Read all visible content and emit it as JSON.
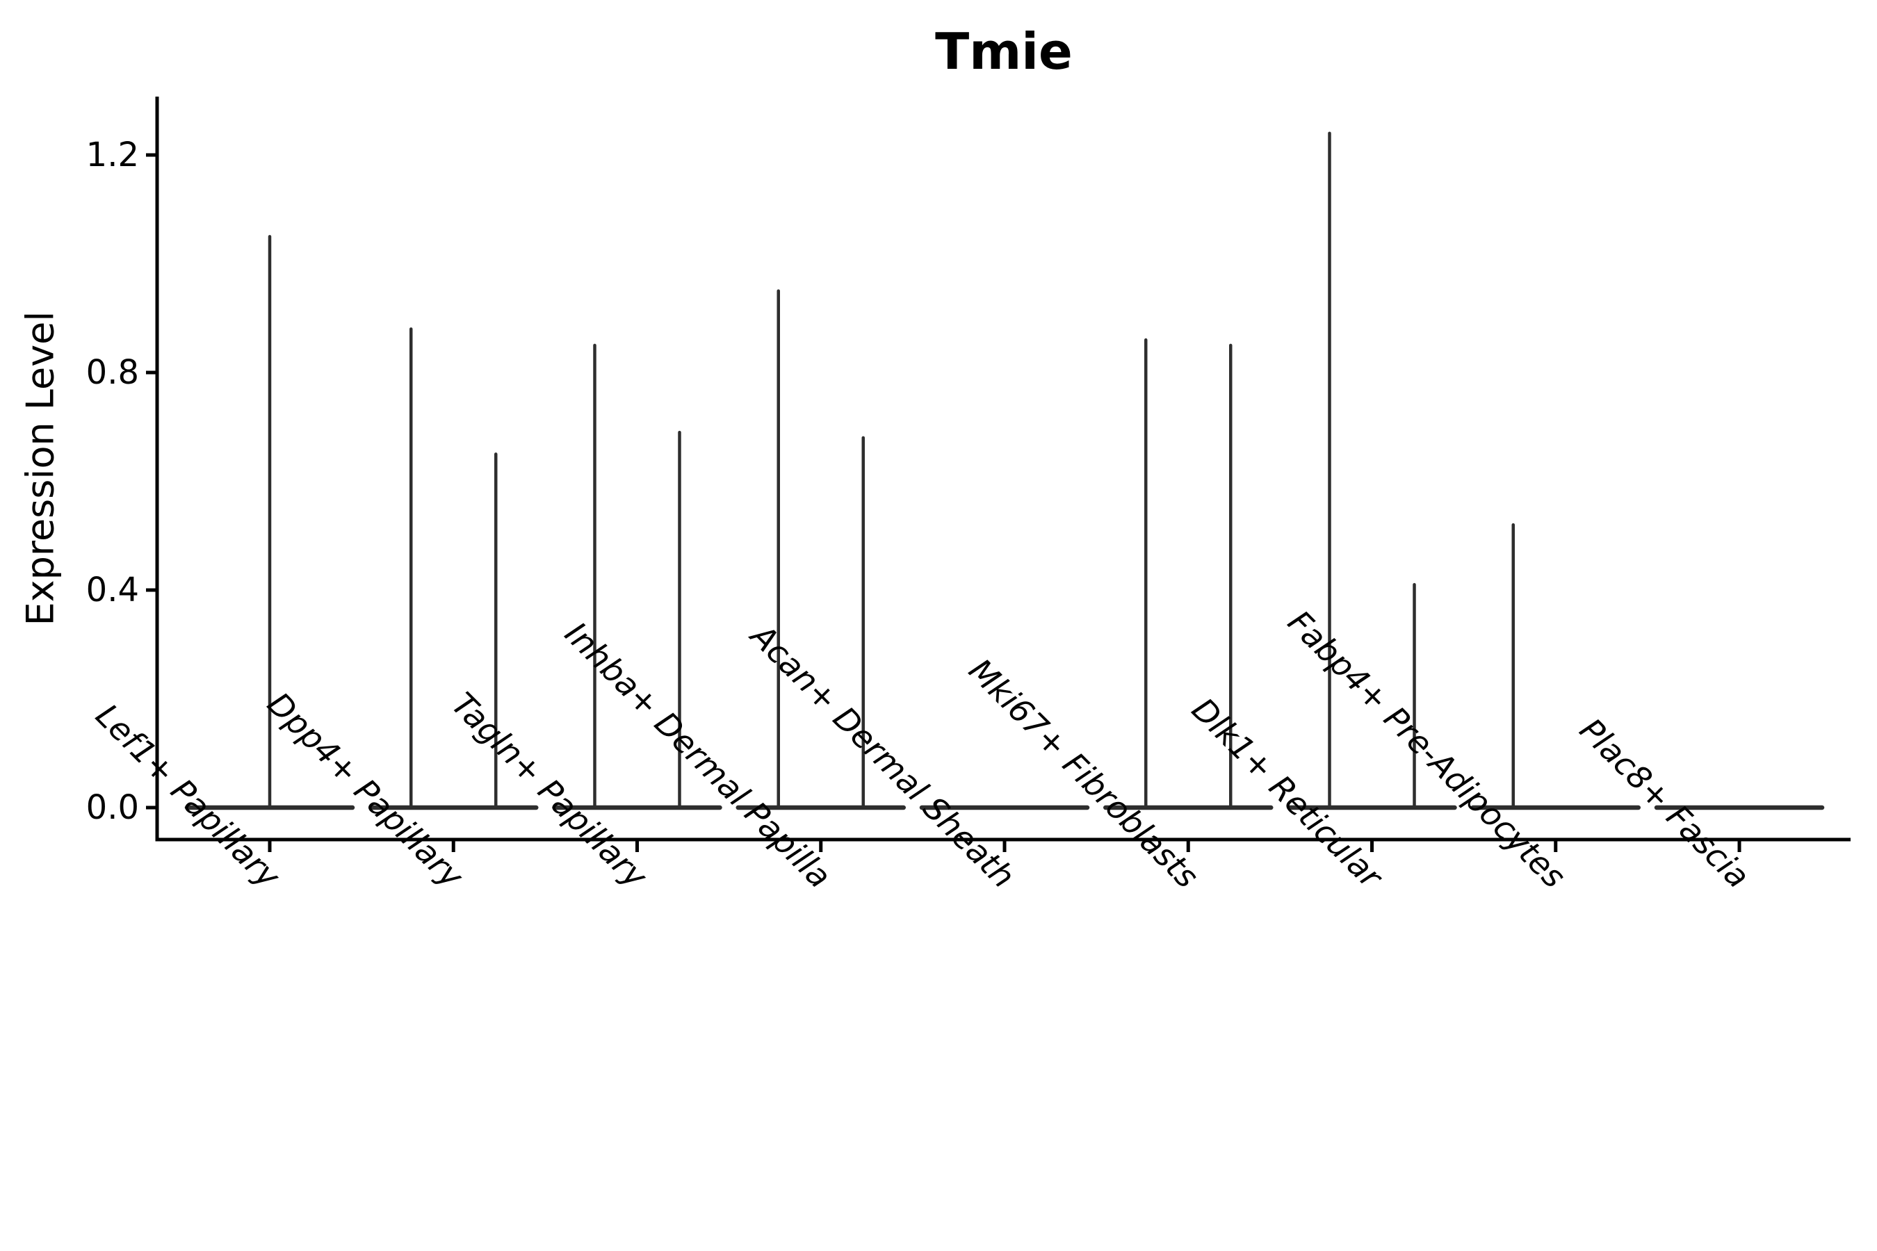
{
  "chart_data": {
    "type": "violin",
    "title": "Tmie",
    "xlabel": "",
    "ylabel": "Expression Level",
    "ylim": [
      0,
      1.3
    ],
    "ytick_labels": [
      "0.0",
      "0.4",
      "0.8",
      "1.2"
    ],
    "ytick_values": [
      0.0,
      0.4,
      0.8,
      1.2
    ],
    "grid": false,
    "legend": "none",
    "baseline_value": 0.0,
    "categories": [
      {
        "label": "Lef1+ Papillary",
        "violins": [
          {
            "position": "center",
            "peak_expression": 1.05
          }
        ]
      },
      {
        "label": "Dpp4+ Papillary",
        "violins": [
          {
            "position": "left",
            "peak_expression": 0.88
          },
          {
            "position": "right",
            "peak_expression": 0.65
          }
        ]
      },
      {
        "label": "Tagln+ Papillary",
        "violins": [
          {
            "position": "left",
            "peak_expression": 0.85
          },
          {
            "position": "right",
            "peak_expression": 0.69
          }
        ]
      },
      {
        "label": "Inhba+ Dermal Papilla",
        "violins": [
          {
            "position": "left",
            "peak_expression": 0.95
          },
          {
            "position": "right",
            "peak_expression": 0.68
          }
        ]
      },
      {
        "label": "Acan+ Dermal Sheath",
        "violins": []
      },
      {
        "label": "Mki67+ Fibroblasts",
        "violins": [
          {
            "position": "left",
            "peak_expression": 0.86
          },
          {
            "position": "right",
            "peak_expression": 0.85
          }
        ]
      },
      {
        "label": "Dlk1+ Reticular",
        "violins": [
          {
            "position": "left",
            "peak_expression": 1.24
          },
          {
            "position": "right",
            "peak_expression": 0.41
          }
        ]
      },
      {
        "label": "Fabp4+ Pre-Adipocytes",
        "violins": [
          {
            "position": "left",
            "peak_expression": 0.52
          }
        ]
      },
      {
        "label": "Plac8+ Fascia",
        "violins": []
      }
    ],
    "colors": {
      "violin": "#2e2e2e",
      "axis": "#000000",
      "text": "#000000",
      "background": "#ffffff"
    }
  }
}
